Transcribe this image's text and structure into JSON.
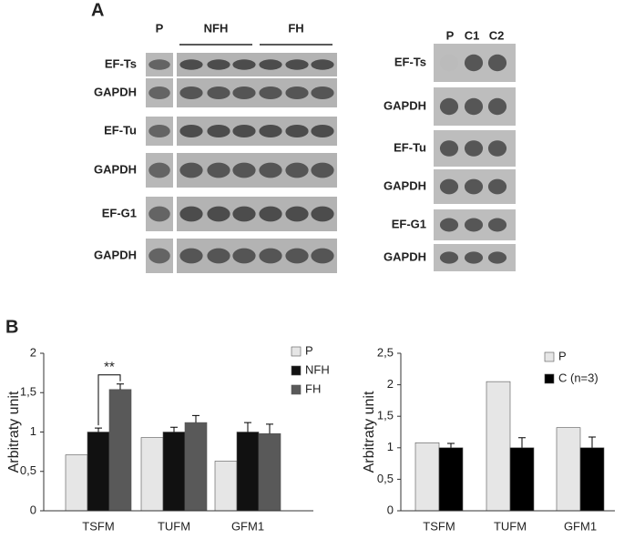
{
  "panel_labels": [
    "A",
    "B"
  ],
  "blots": {
    "left": {
      "lanes": [
        "P",
        "NFH",
        "FH"
      ],
      "rows": [
        "EF-Ts",
        "GAPDH",
        "EF-Tu",
        "GAPDH",
        "EF-G1",
        "GAPDH"
      ]
    },
    "right": {
      "lanes": [
        "P",
        "C1",
        "C2"
      ],
      "rows": [
        "EF-Ts",
        "GAPDH",
        "EF-Tu",
        "GAPDH",
        "EF-G1",
        "GAPDH"
      ]
    }
  },
  "chart_data": [
    {
      "type": "bar",
      "y_label": "Arbitraty unit",
      "categories": [
        "TSFM",
        "TUFM",
        "GFM1"
      ],
      "series": [
        {
          "name": "P",
          "color": "#e6e6e6",
          "values": [
            0.71,
            0.93,
            0.63
          ]
        },
        {
          "name": "NFH",
          "color": "#111111",
          "values": [
            1.0,
            1.0,
            1.0
          ],
          "errors": [
            0.05,
            0.06,
            0.12
          ]
        },
        {
          "name": "FH",
          "color": "#595959",
          "values": [
            1.54,
            1.12,
            0.98
          ],
          "errors": [
            0.07,
            0.09,
            0.12
          ]
        }
      ],
      "ylim": [
        0,
        2
      ],
      "yticks": [
        0,
        {
          "value": 0.5,
          "label": "0,5"
        },
        1,
        {
          "value": 1.5,
          "label": "1,5"
        },
        2
      ],
      "annotation": "**"
    },
    {
      "type": "bar",
      "y_label": "Arbitraty unit",
      "categories": [
        "TSFM",
        "TUFM",
        "GFM1"
      ],
      "series": [
        {
          "name": "P",
          "color": "#e6e6e6",
          "values": [
            1.08,
            2.05,
            1.32
          ]
        },
        {
          "name": "C (n=3)",
          "color": "#000000",
          "values": [
            1.0,
            1.0,
            1.0
          ],
          "errors": [
            0.07,
            0.16,
            0.17
          ]
        }
      ],
      "ylim": [
        0,
        2.5
      ],
      "yticks": [
        0,
        {
          "value": 0.5,
          "label": "0,5"
        },
        1,
        {
          "value": 1.5,
          "label": "1,5"
        },
        2,
        {
          "value": 2.5,
          "label": "2,5"
        }
      ]
    }
  ]
}
